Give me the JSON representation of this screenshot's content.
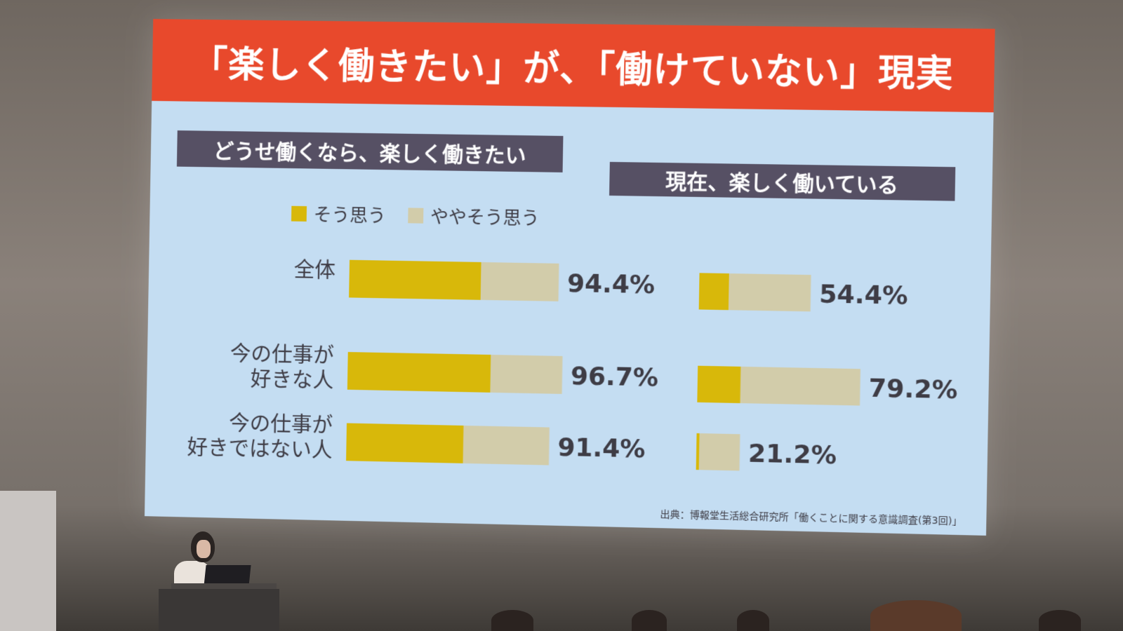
{
  "slide": {
    "title": "「楽しく働きたい」が、「働けていない」現実",
    "left_header": "どうせ働くなら、楽しく働きたい",
    "right_header": "現在、楽しく働いている",
    "source": "出典：博報堂生活総合研究所「働くことに関する意識調査(第3回)」"
  },
  "legend": [
    {
      "label": "そう思う",
      "color": "#d8b80a"
    },
    {
      "label": "ややそう思う",
      "color": "#d2ccaa"
    }
  ],
  "row_labels": [
    {
      "line1": "全体",
      "line2": ""
    },
    {
      "line1": "今の仕事が",
      "line2": "好きな人"
    },
    {
      "line1": "今の仕事が",
      "line2": "好きではない人"
    }
  ],
  "chart_data": [
    {
      "type": "bar",
      "title": "どうせ働くなら、楽しく働きたい",
      "orientation": "horizontal",
      "stacked": true,
      "categories": [
        "全体",
        "今の仕事が好きな人",
        "今の仕事が好きではない人"
      ],
      "series": [
        {
          "name": "そう思う",
          "values": [
            59.5,
            64.6,
            52.8
          ],
          "color": "#d8b80a"
        },
        {
          "name": "ややそう思う",
          "values": [
            34.9,
            32.1,
            38.6
          ],
          "color": "#d2ccaa"
        }
      ],
      "totals": [
        94.4,
        96.7,
        91.4
      ],
      "total_labels": [
        "94.4%",
        "96.7%",
        "91.4%"
      ],
      "xlim": [
        0,
        100
      ],
      "grid": false,
      "legend_position": "top"
    },
    {
      "type": "bar",
      "title": "現在、楽しく働いている",
      "orientation": "horizontal",
      "stacked": true,
      "categories": [
        "全体",
        "今の仕事が好きな人",
        "今の仕事が好きではない人"
      ],
      "series": [
        {
          "name": "そう思う",
          "values": [
            14.5,
            21.0,
            1.5
          ],
          "color": "#d8b80a"
        },
        {
          "name": "ややそう思う",
          "values": [
            39.9,
            58.2,
            19.7
          ],
          "color": "#d2ccaa"
        }
      ],
      "totals": [
        54.4,
        79.2,
        21.2
      ],
      "total_labels": [
        "54.4%",
        "79.2%",
        "21.2%"
      ],
      "xlim": [
        0,
        100
      ],
      "grid": false
    }
  ]
}
